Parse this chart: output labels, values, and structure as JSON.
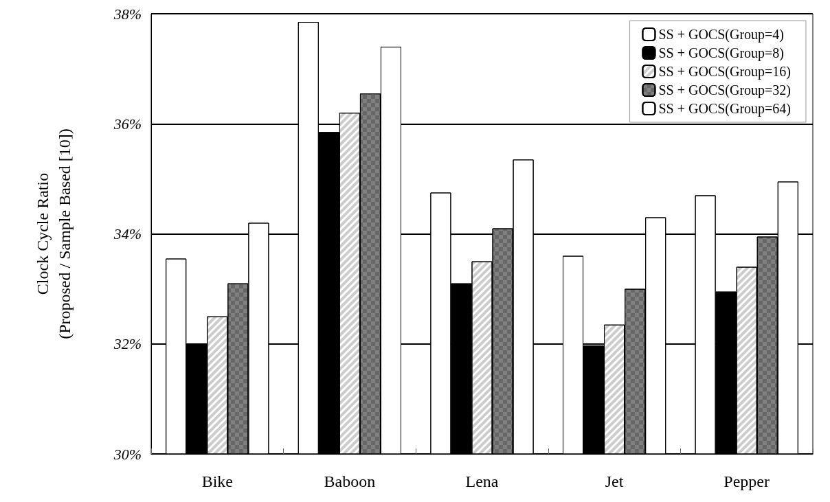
{
  "chart_data": {
    "type": "bar",
    "ylabel": "Clock Cycle Ratio\n(Proposed / Sample Based [10])",
    "categories": [
      "Bike",
      "Baboon",
      "Lena",
      "Jet",
      "Pepper"
    ],
    "series": [
      {
        "name": "SS + GOCS(Group=4)",
        "color": "#ffffff",
        "values": [
          33.55,
          37.85,
          34.75,
          33.6,
          34.7
        ]
      },
      {
        "name": "SS + GOCS(Group=8)",
        "color": "#000000",
        "values": [
          32.0,
          35.85,
          33.1,
          31.97,
          32.95
        ]
      },
      {
        "name": "SS + GOCS(Group=16)",
        "color": "#ffffff",
        "values": [
          32.5,
          36.2,
          33.5,
          32.35,
          33.4
        ]
      },
      {
        "name": "SS + GOCS(Group=32)",
        "color": "#808080",
        "values": [
          33.1,
          36.55,
          34.1,
          33.0,
          33.95
        ]
      },
      {
        "name": "SS + GOCS(Group=64)",
        "color": "#ffffff",
        "values": [
          34.2,
          37.4,
          35.35,
          34.3,
          34.95
        ]
      }
    ],
    "ylim": [
      30,
      38
    ],
    "yticks": [
      {
        "value": 30,
        "label": "30%"
      },
      {
        "value": 32,
        "label": "32%"
      },
      {
        "value": 34,
        "label": "34%"
      },
      {
        "value": 36,
        "label": "36%"
      },
      {
        "value": 38,
        "label": "38%"
      }
    ],
    "grid": "y",
    "legend": "top right"
  }
}
